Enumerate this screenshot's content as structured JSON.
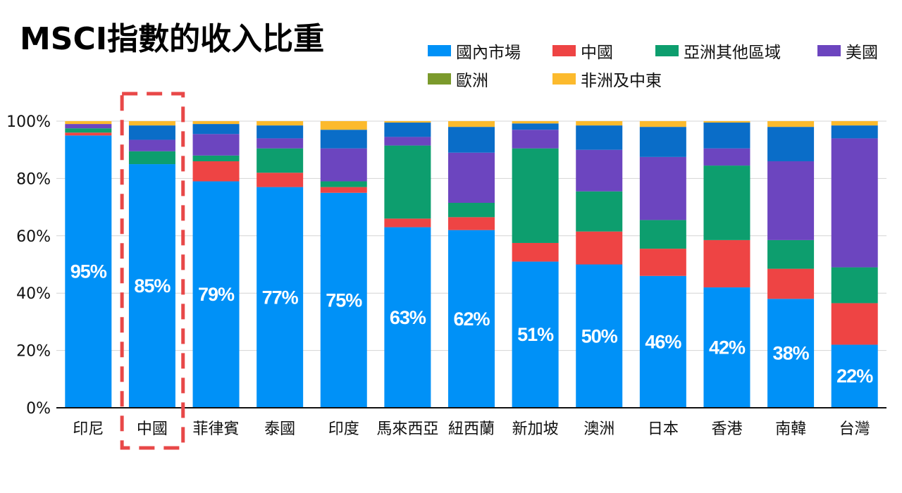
{
  "chart_data": {
    "type": "bar",
    "stacked": true,
    "title": "MSCI指數的收入比重",
    "categories": [
      "印尼",
      "中國",
      "菲律賓",
      "泰國",
      "印度",
      "馬來西亞",
      "紐西蘭",
      "新加坡",
      "澳洲",
      "日本",
      "香港",
      "南韓",
      "台灣"
    ],
    "series": [
      {
        "name": "國內市場",
        "color": "#0091F7",
        "values": [
          95,
          85,
          79,
          77,
          75,
          63,
          62,
          51,
          50,
          46,
          42,
          38,
          22
        ]
      },
      {
        "name": "中國",
        "color": "#EE4444",
        "values": [
          1,
          0,
          7,
          5,
          2,
          3,
          4.5,
          6.5,
          11.5,
          9.5,
          16.5,
          10.5,
          14.5
        ]
      },
      {
        "name": "亞洲其他區域",
        "color": "#0D9E6E",
        "values": [
          1.5,
          4.5,
          2,
          8.5,
          2,
          25.5,
          5,
          33,
          14,
          10,
          26,
          10,
          12.5
        ]
      },
      {
        "name": "美國",
        "color": "#6C45BF",
        "values": [
          1.5,
          4,
          7.5,
          3.5,
          11.5,
          3,
          17.5,
          6.5,
          14.5,
          22,
          6,
          27.5,
          45
        ]
      },
      {
        "name": "歐洲",
        "color": "#0A6DC8",
        "legend_color": "#7B9A2C",
        "values": [
          0,
          5,
          3.5,
          4.5,
          6.5,
          5,
          9,
          2.2,
          8.5,
          10.5,
          9,
          12,
          4.5
        ]
      },
      {
        "name": "非洲及中東",
        "color": "#FCBA2D",
        "values": [
          1,
          1.5,
          1,
          1.5,
          3,
          0.5,
          2,
          0.8,
          1.5,
          2,
          0.5,
          2,
          1.5
        ]
      }
    ],
    "data_labels": [
      "95%",
      "85%",
      "79%",
      "77%",
      "75%",
      "63%",
      "62%",
      "51%",
      "50%",
      "46%",
      "42%",
      "38%",
      "22%"
    ],
    "yticks": [
      0,
      20,
      40,
      60,
      80,
      100
    ],
    "ytick_labels": [
      "0%",
      "20%",
      "40%",
      "60%",
      "80%",
      "100%"
    ],
    "ylim": [
      0,
      100
    ],
    "grid": true,
    "legend_position": "top-right",
    "highlighted_category_index": 1,
    "highlight_color": "#E84848"
  }
}
